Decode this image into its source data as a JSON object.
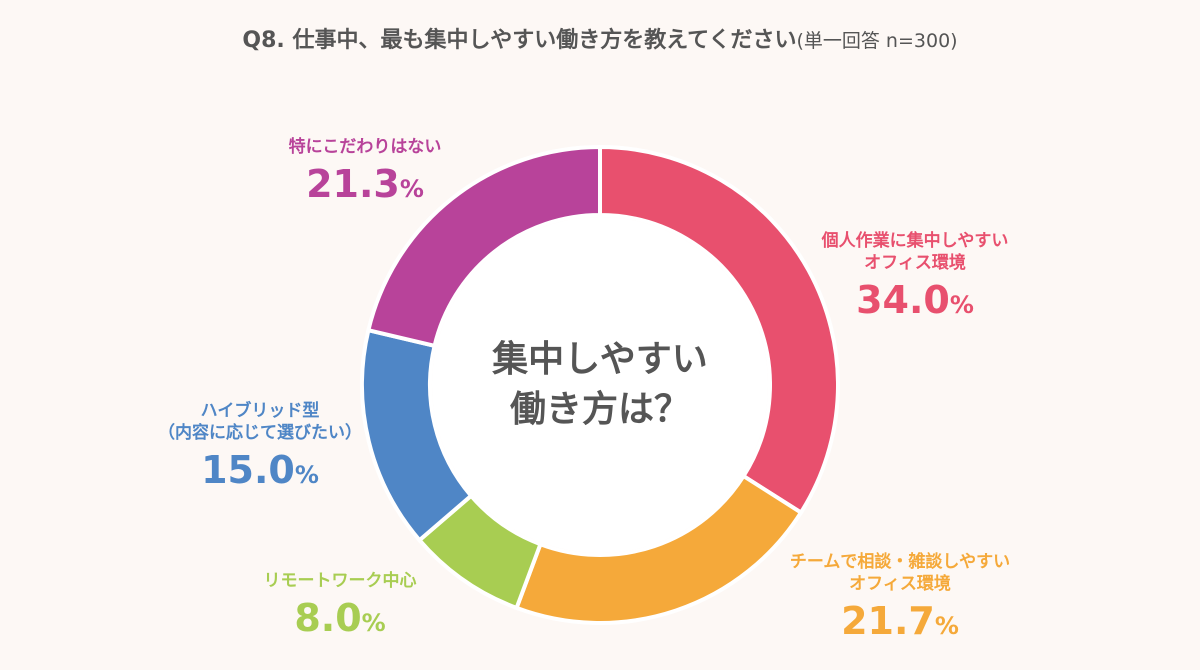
{
  "title": {
    "main": "Q8. 仕事中、最も集中しやすい働き方を教えてください",
    "sub": "(単一回答 n=300)"
  },
  "center": {
    "line1": "集中しやすい",
    "line2": "働き方は？"
  },
  "percent_sign": "%",
  "chart_data": {
    "type": "pie",
    "title": "Q8. 仕事中、最も集中しやすい働き方を教えてください(単一回答 n=300)",
    "donut": true,
    "start": "top",
    "direction": "clockwise",
    "slices": [
      {
        "label_lines": [
          "個人作業に集中しやすい",
          "オフィス環境"
        ],
        "value": 34.0,
        "value_text": "34.0",
        "color": "#e8506e"
      },
      {
        "label_lines": [
          "チームで相談・雑談しやすい",
          "オフィス環境"
        ],
        "value": 21.7,
        "value_text": "21.7",
        "color": "#f5a93a"
      },
      {
        "label_lines": [
          "リモートワーク中心"
        ],
        "value": 8.0,
        "value_text": "8.0",
        "color": "#a8cd52"
      },
      {
        "label_lines": [
          "ハイブリッド型",
          "（内容に応じて選びたい）"
        ],
        "value": 15.0,
        "value_text": "15.0",
        "color": "#4f86c6"
      },
      {
        "label_lines": [
          "特にこだわりはない"
        ],
        "value": 21.3,
        "value_text": "21.3",
        "color": "#b8439a"
      }
    ]
  }
}
